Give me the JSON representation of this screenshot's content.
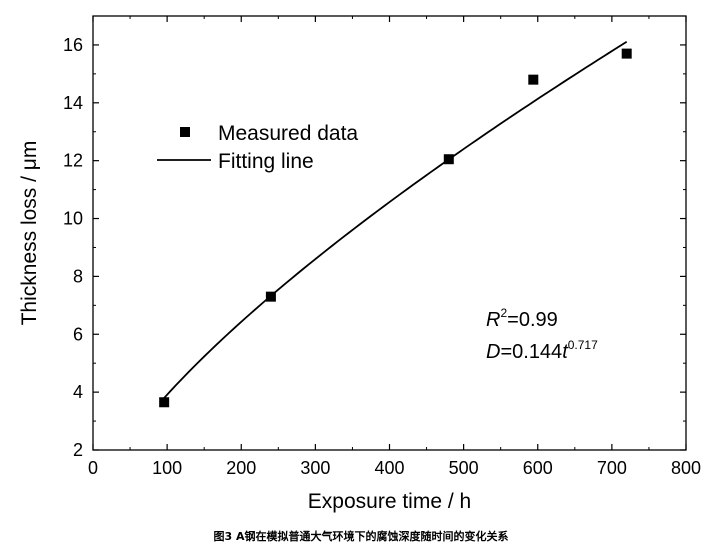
{
  "chart_data": {
    "type": "scatter",
    "title": "",
    "xlabel": "Exposure time / h",
    "ylabel": "Thickness loss / μm",
    "xlim": [
      0,
      800
    ],
    "ylim": [
      2,
      17
    ],
    "xticks": [
      0,
      100,
      200,
      300,
      400,
      500,
      600,
      700,
      800
    ],
    "yticks": [
      2,
      4,
      6,
      8,
      10,
      12,
      14,
      16
    ],
    "grid": false,
    "legend_position": "upper-left",
    "series": [
      {
        "name": "Measured data",
        "kind": "markers",
        "marker": "square",
        "x": [
          96,
          240,
          480,
          594,
          720
        ],
        "y": [
          3.65,
          7.3,
          12.05,
          14.8,
          15.7
        ]
      },
      {
        "name": "Fitting line",
        "kind": "line",
        "model": {
          "a": 0.144,
          "b": 0.717
        },
        "x_range": [
          96,
          720
        ]
      }
    ],
    "annotations": {
      "r_label": "R",
      "r_sup": "2",
      "r_value": "=0.99",
      "d_label": "D",
      "d_value": "=0.144",
      "t_label": "t",
      "t_sup": "0.717"
    }
  },
  "caption": "图3   A钢在模拟普通大气环境下的腐蚀深度随时间的变化关系",
  "colors": {
    "axis": "#000000",
    "marker": "#000000",
    "line": "#000000",
    "background": "#ffffff"
  }
}
